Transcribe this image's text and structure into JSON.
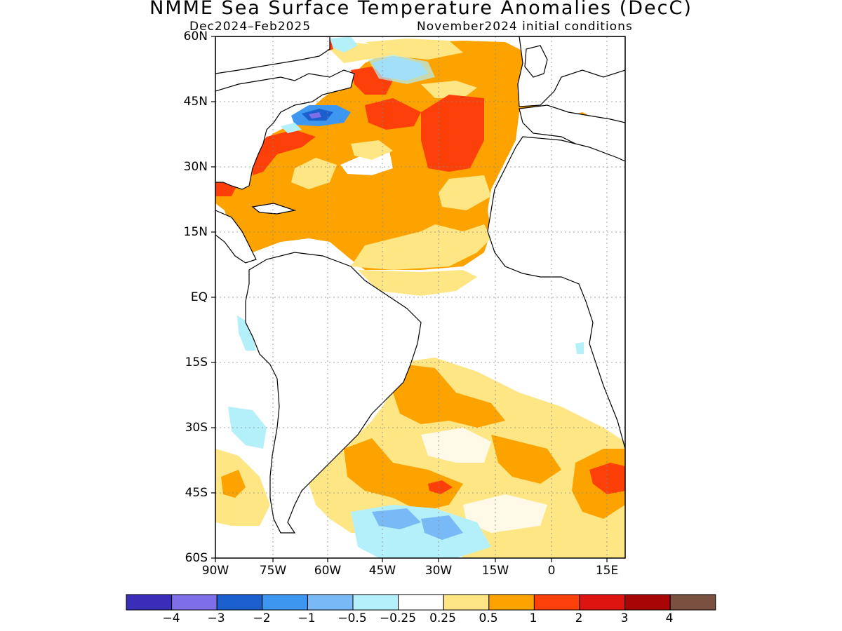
{
  "title": "NMME Sea Surface Temperature Anomalies (DecC)",
  "subtitle_left": "Dec2024–Feb2025",
  "subtitle_right": "November2024 initial conditions",
  "lat_labels": [
    "60N",
    "45N",
    "30N",
    "15N",
    "EQ",
    "15S",
    "30S",
    "45S",
    "60S"
  ],
  "lon_labels": [
    "90W",
    "75W",
    "60W",
    "45W",
    "30W",
    "15W",
    "0",
    "15E"
  ],
  "map": {
    "lat_range": [
      -60,
      60
    ],
    "lon_range": [
      -90,
      17
    ],
    "grid": true,
    "region": "Atlantic Ocean basin with coastlines of the Americas, Europe and Africa"
  },
  "colorbar": {
    "colors": [
      "#3a2eb8",
      "#7e6ee8",
      "#1b5fcf",
      "#3d97f0",
      "#78b9f6",
      "#b4f0fa",
      "#ffffff",
      "#fee685",
      "#fca300",
      "#fd3f0a",
      "#dd1410",
      "#a80606",
      "#7a5040"
    ],
    "labels": [
      "−4",
      "−3",
      "−2",
      "−1",
      "−0.5",
      "−0.25",
      "0.25",
      "0.5",
      "1",
      "2",
      "3",
      "4"
    ]
  }
}
